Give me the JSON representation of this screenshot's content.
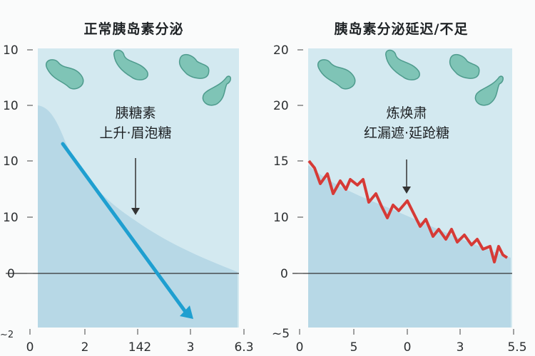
{
  "chart_data": [
    {
      "type": "area",
      "title": "正常胰岛素分泌",
      "y_tick_labels": [
        "10",
        "10",
        "10",
        "10",
        "0",
        "~2"
      ],
      "x_tick_labels": [
        "0",
        "2",
        "142",
        "3",
        "6.3"
      ],
      "annotation": [
        "胰糖素",
        "上升·眉泡糖"
      ],
      "colors": {
        "plot_bg": "#d3e9f0",
        "area": "#b7d8e6",
        "arrow": "#1f9fd0",
        "cell": "#7fc4b6"
      },
      "cells": 4
    },
    {
      "type": "line",
      "title": "胰岛素分泌延迟/不足",
      "y_tick_labels": [
        "20",
        "20",
        "15",
        "10",
        "0",
        "~5"
      ],
      "x_tick_labels": [
        "0",
        "5",
        "0",
        "3",
        "5.5"
      ],
      "annotation": [
        "炼焕肃",
        "红漏遮·延跄糖"
      ],
      "colors": {
        "plot_bg": "#d3e9f0",
        "area": "#b7d8e6",
        "line": "#d63a36",
        "cell": "#7fc4b6"
      },
      "cells": 4
    }
  ]
}
